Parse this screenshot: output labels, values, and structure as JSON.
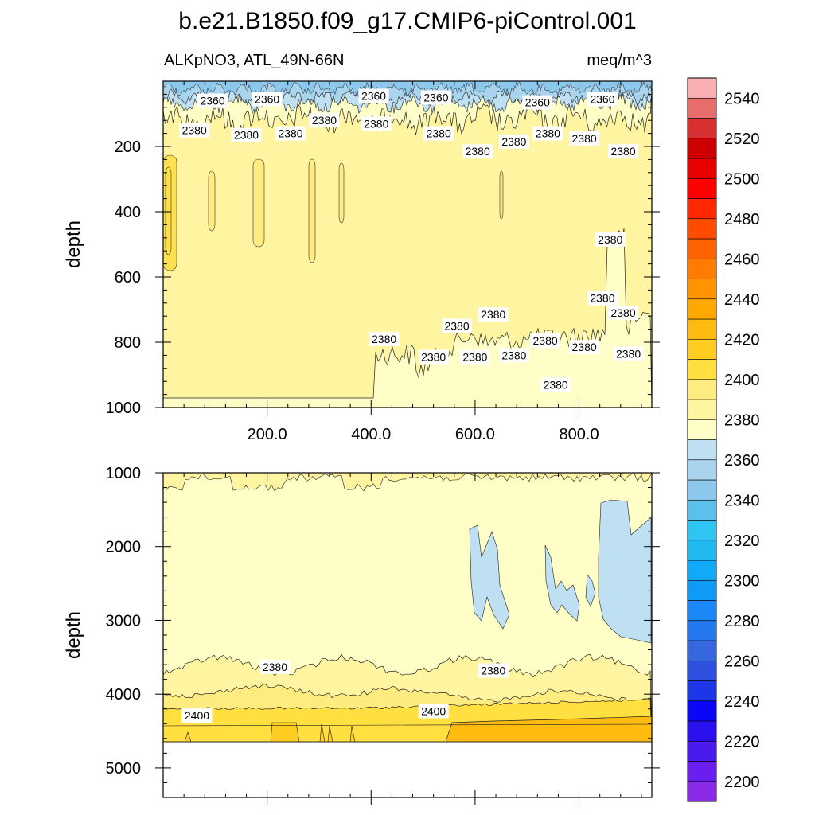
{
  "chart_data": {
    "type": "heatmap",
    "title": "b.e21.B1850.f09_g17.CMIP6-piControl.001",
    "subtitle_left": "ALKpNO3, ATL_49N-66N",
    "subtitle_right": "meq/m^3",
    "xlabel": "",
    "ylabel": "depth",
    "xlim": [
      0,
      940
    ],
    "x_ticks": [
      "200.0",
      "400.0",
      "600.0",
      "800.0"
    ],
    "x_tick_values": [
      200,
      400,
      600,
      800
    ],
    "panels": [
      {
        "name": "upper",
        "ylim": [
          0,
          1000
        ],
        "y_ticks": [
          "200",
          "400",
          "600",
          "800",
          "1000"
        ],
        "y_tick_values": [
          200,
          400,
          600,
          800,
          1000
        ],
        "contour_labels": [
          {
            "text": "2360",
            "x": 95,
            "depth": 60
          },
          {
            "text": "2360",
            "x": 200,
            "depth": 55
          },
          {
            "text": "2360",
            "x": 405,
            "depth": 45
          },
          {
            "text": "2360",
            "x": 525,
            "depth": 50
          },
          {
            "text": "2360",
            "x": 720,
            "depth": 65
          },
          {
            "text": "2360",
            "x": 845,
            "depth": 55
          },
          {
            "text": "2380",
            "x": 60,
            "depth": 150
          },
          {
            "text": "2380",
            "x": 160,
            "depth": 165
          },
          {
            "text": "2380",
            "x": 245,
            "depth": 160
          },
          {
            "text": "2380",
            "x": 310,
            "depth": 120
          },
          {
            "text": "2380",
            "x": 410,
            "depth": 130
          },
          {
            "text": "2380",
            "x": 530,
            "depth": 160
          },
          {
            "text": "2380",
            "x": 605,
            "depth": 215
          },
          {
            "text": "2380",
            "x": 675,
            "depth": 185
          },
          {
            "text": "2380",
            "x": 740,
            "depth": 160
          },
          {
            "text": "2380",
            "x": 810,
            "depth": 175
          },
          {
            "text": "2380",
            "x": 885,
            "depth": 215
          },
          {
            "text": "2380",
            "x": 860,
            "depth": 485
          },
          {
            "text": "2380",
            "x": 845,
            "depth": 665
          },
          {
            "text": "2380",
            "x": 885,
            "depth": 710
          },
          {
            "text": "2380",
            "x": 565,
            "depth": 750
          },
          {
            "text": "2380",
            "x": 635,
            "depth": 715
          },
          {
            "text": "2380",
            "x": 425,
            "depth": 790
          },
          {
            "text": "2380",
            "x": 520,
            "depth": 845
          },
          {
            "text": "2380",
            "x": 600,
            "depth": 845
          },
          {
            "text": "2380",
            "x": 675,
            "depth": 840
          },
          {
            "text": "2380",
            "x": 735,
            "depth": 795
          },
          {
            "text": "2380",
            "x": 810,
            "depth": 815
          },
          {
            "text": "2380",
            "x": 895,
            "depth": 835
          },
          {
            "text": "2380",
            "x": 755,
            "depth": 930
          }
        ]
      },
      {
        "name": "lower",
        "ylim": [
          1000,
          5400
        ],
        "y_ticks": [
          "1000",
          "2000",
          "3000",
          "4000",
          "5000"
        ],
        "y_tick_values": [
          1000,
          2000,
          3000,
          4000,
          5000
        ],
        "contour_labels": [
          {
            "text": "2380",
            "x": 215,
            "depth": 3630
          },
          {
            "text": "2380",
            "x": 635,
            "depth": 3680
          },
          {
            "text": "2400",
            "x": 65,
            "depth": 4290
          },
          {
            "text": "2400",
            "x": 520,
            "depth": 4230
          }
        ]
      }
    ],
    "colorbar": {
      "levels": [
        2200,
        2210,
        2220,
        2230,
        2240,
        2250,
        2260,
        2270,
        2280,
        2290,
        2300,
        2310,
        2320,
        2330,
        2340,
        2350,
        2360,
        2370,
        2380,
        2390,
        2400,
        2410,
        2420,
        2430,
        2440,
        2450,
        2460,
        2470,
        2480,
        2490,
        2500,
        2510,
        2520,
        2530,
        2540,
        2550
      ],
      "tick_labels": [
        "2200",
        "2220",
        "2240",
        "2260",
        "2280",
        "2300",
        "2320",
        "2340",
        "2360",
        "2380",
        "2400",
        "2420",
        "2440",
        "2460",
        "2480",
        "2500",
        "2520",
        "2540"
      ],
      "colors": [
        "#8a2be8",
        "#6a1ff0",
        "#4a1aef",
        "#2b10f0",
        "#0a06f8",
        "#1c36e8",
        "#3050e0",
        "#3868e0",
        "#2478f0",
        "#1a88f8",
        "#109af8",
        "#10aaf8",
        "#20baf0",
        "#2ec6f0",
        "#5cc0ec",
        "#8cc8ec",
        "#aad4ee",
        "#bee0f2",
        "#fefec6",
        "#fff5a0",
        "#ffec80",
        "#ffe040",
        "#ffcc22",
        "#ffbb10",
        "#ffa800",
        "#ff9400",
        "#ff7c00",
        "#ff6400",
        "#ff4c00",
        "#ff2800",
        "#ff0000",
        "#e80000",
        "#cc0000",
        "#d83030",
        "#e86c6c",
        "#f9b0b4"
      ]
    },
    "fill_colors": {
      "c2340": "#8cc8ec",
      "c2350": "#aad4ee",
      "c2360": "#bee0f2",
      "c2370": "#fefec6",
      "c2380": "#fff5a0",
      "c2390": "#ffec80",
      "c2400": "#ffe040",
      "c2410": "#ffcc22",
      "c2420": "#ffbb10"
    }
  }
}
